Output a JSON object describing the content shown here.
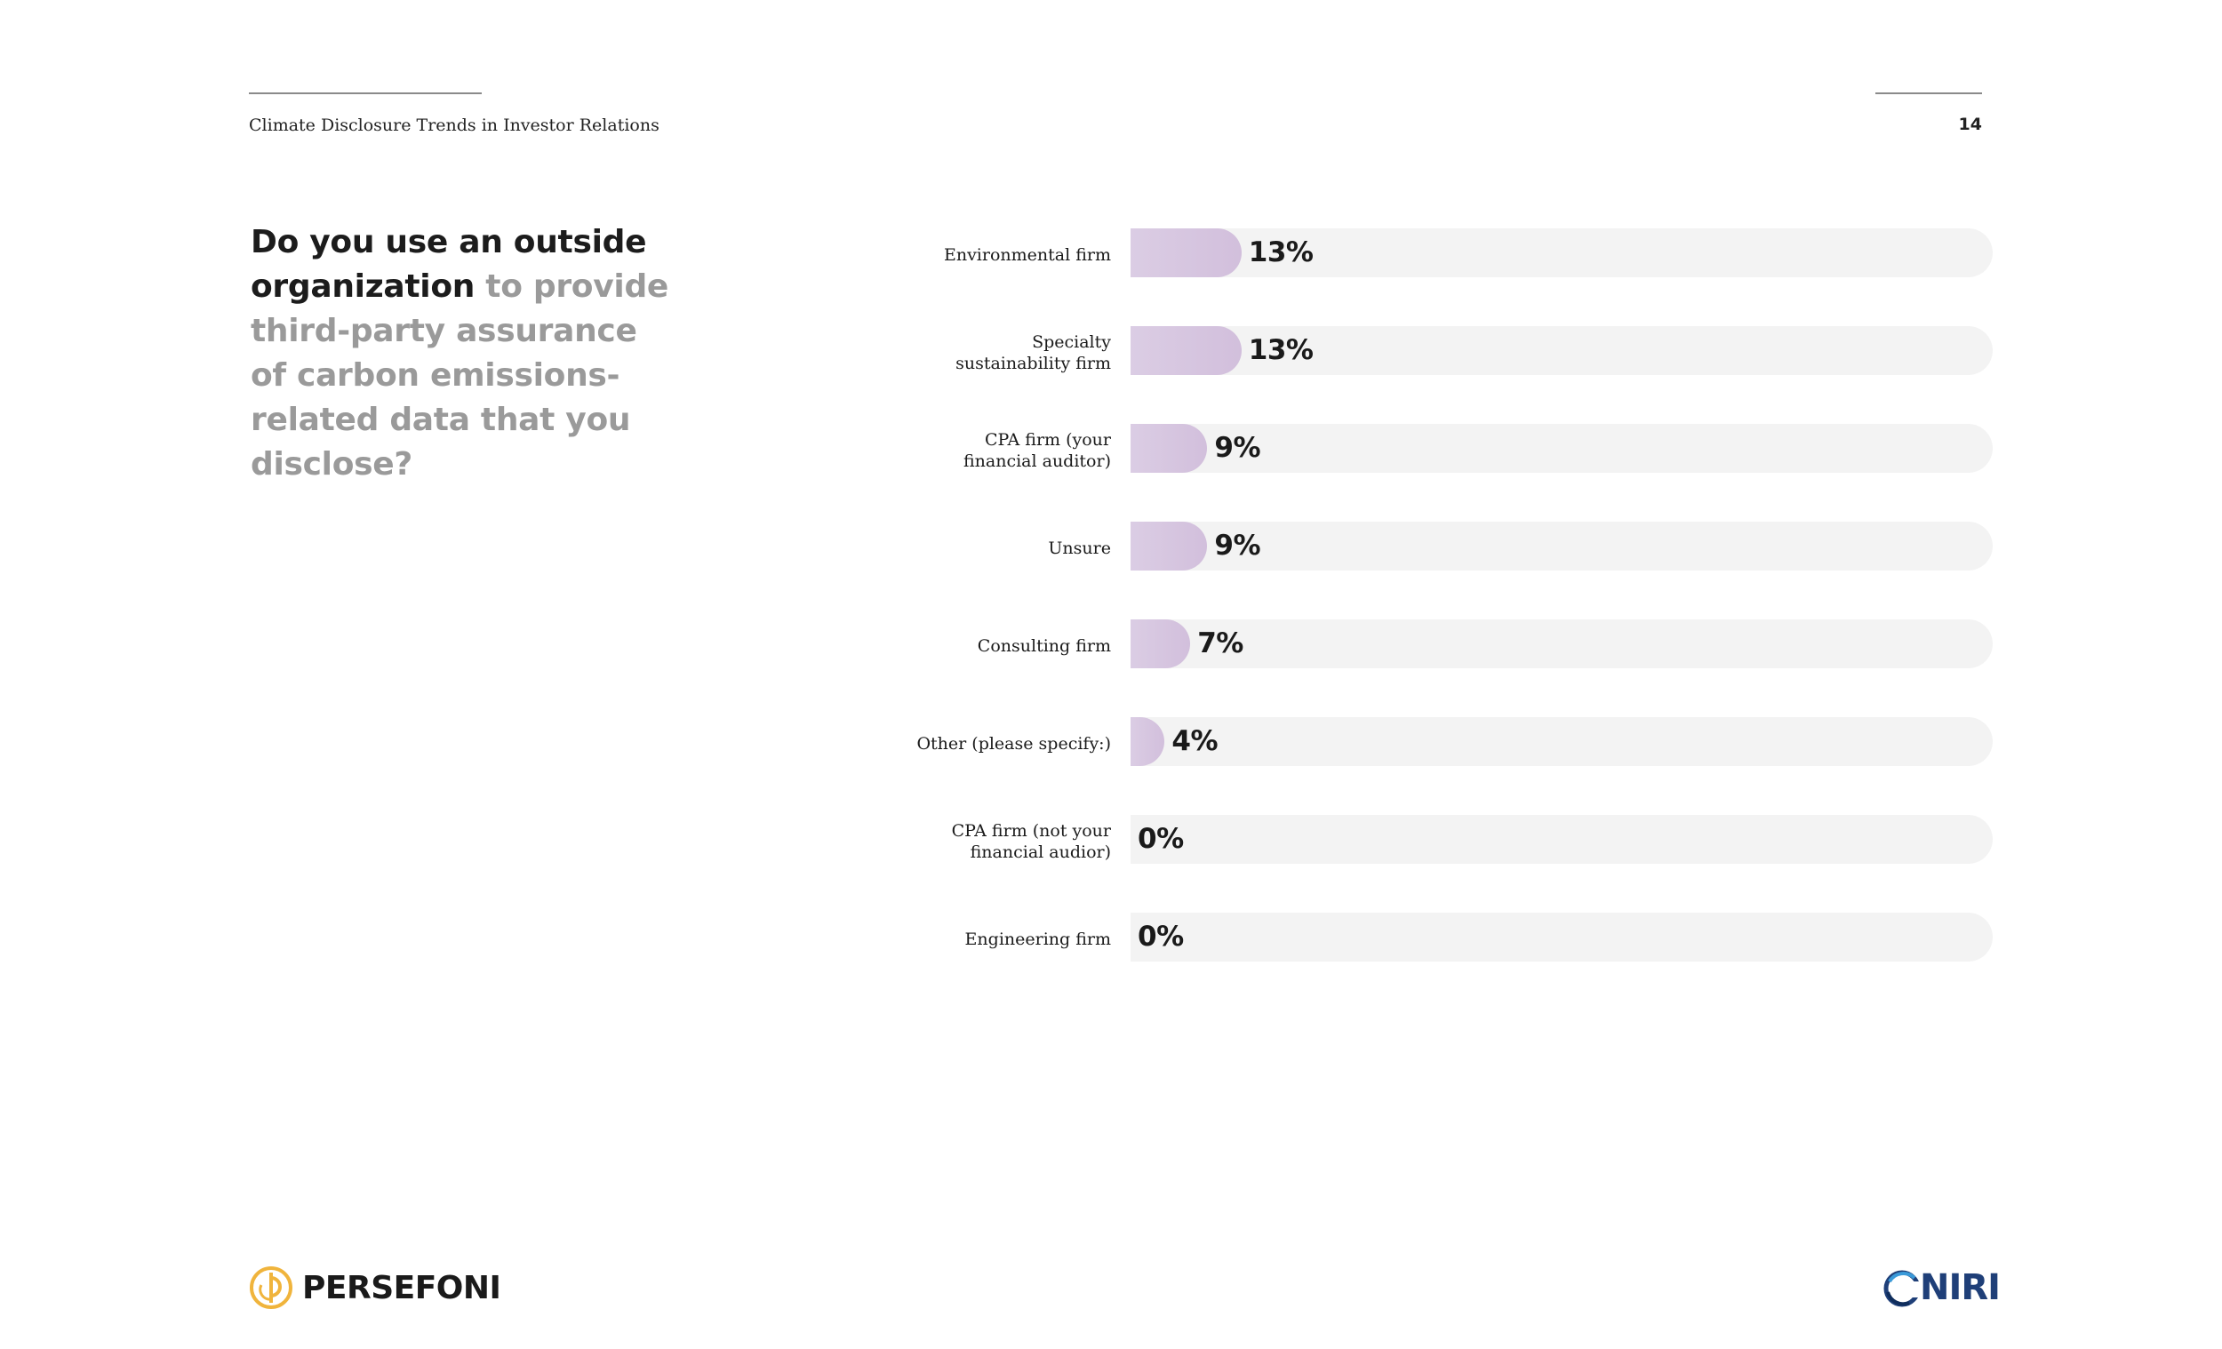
{
  "header": {
    "title": "Climate Disclosure Trends in Investor Relations",
    "page_number": "14"
  },
  "question": {
    "strong": "Do you use an outside organization",
    "muted": " to provide third-party assurance of carbon emissions-related data that you disclose?"
  },
  "chart_data": {
    "type": "bar",
    "orientation": "horizontal",
    "categories": [
      "Environmental firm",
      "Specialty sustainability firm",
      "CPA firm (your financial auditor)",
      "Unsure",
      "Consulting firm",
      "Other (please specify:)",
      "CPA firm (not your financial audior)",
      "Engineering firm"
    ],
    "values": [
      13,
      13,
      9,
      9,
      7,
      4,
      0,
      0
    ],
    "value_labels": [
      "13%",
      "13%",
      "9%",
      "9%",
      "7%",
      "4%",
      "0%",
      "0%"
    ],
    "xlim": [
      0,
      100
    ],
    "unit": "%",
    "colors": {
      "bar": "#d5c4de",
      "track": "#f3f3f3",
      "text": "#1a1a1a"
    }
  },
  "footer": {
    "left_logo_text": "PERSEFONI",
    "right_logo_text": "NIRI"
  },
  "colors": {
    "persefoni_accent": "#f0b43c",
    "niri_blue": "#1f3f78",
    "muted_text": "#9a9a9a"
  }
}
